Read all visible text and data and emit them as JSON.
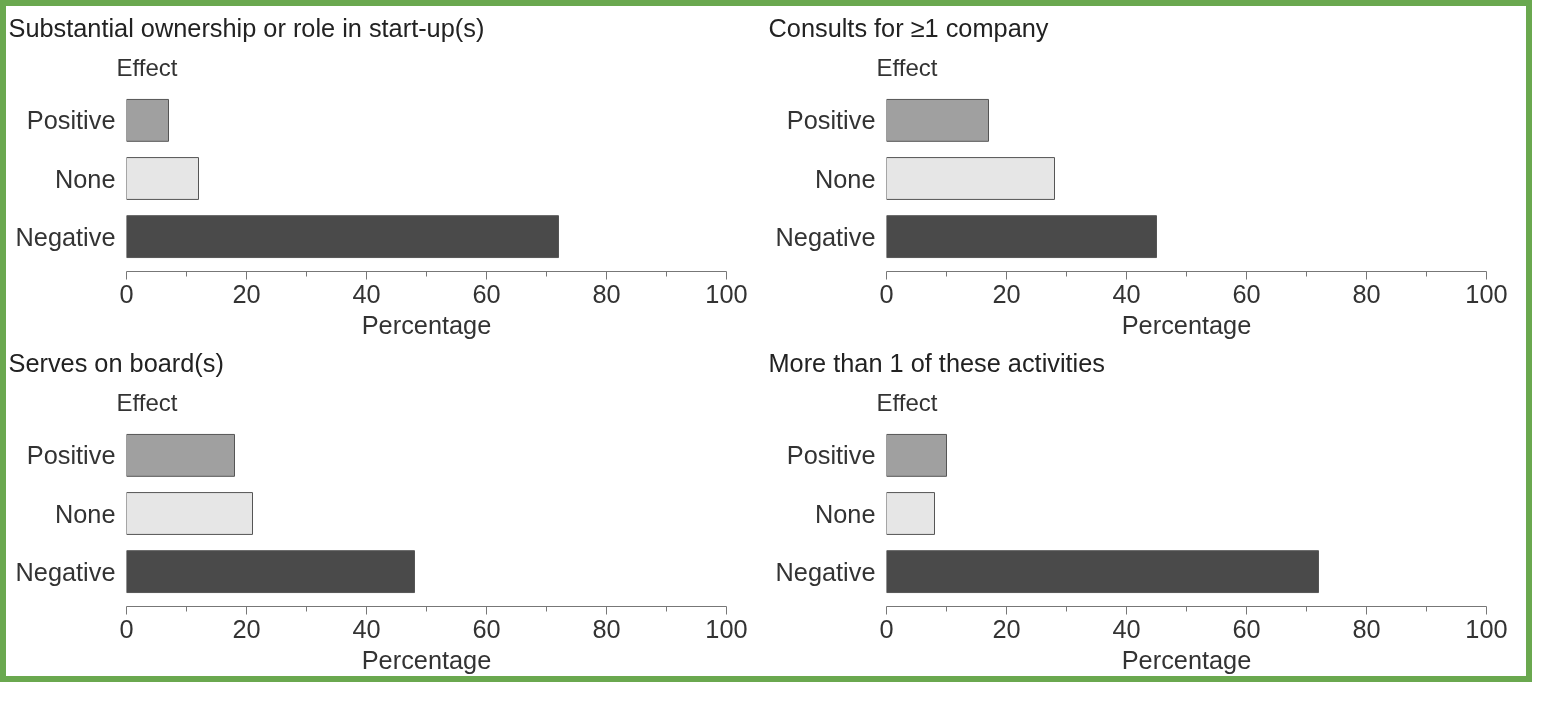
{
  "chart_data": [
    {
      "type": "bar",
      "orientation": "horizontal",
      "title": "Substantial ownership or role in start-up(s)",
      "ylabel": "Effect",
      "xlabel": "Percentage",
      "categories": [
        "Positive",
        "None",
        "Negative"
      ],
      "values": [
        7,
        12,
        72
      ],
      "colors": [
        "#a0a0a0",
        "#e6e6e6",
        "#4a4a4a"
      ],
      "xlim": [
        0,
        100
      ],
      "xticks": [
        0,
        20,
        40,
        60,
        80,
        100
      ],
      "grid": false
    },
    {
      "type": "bar",
      "orientation": "horizontal",
      "title": "Consults for ≥1 company",
      "ylabel": "Effect",
      "xlabel": "Percentage",
      "categories": [
        "Positive",
        "None",
        "Negative"
      ],
      "values": [
        17,
        28,
        45
      ],
      "colors": [
        "#a0a0a0",
        "#e6e6e6",
        "#4a4a4a"
      ],
      "xlim": [
        0,
        100
      ],
      "xticks": [
        0,
        20,
        40,
        60,
        80,
        100
      ],
      "grid": false
    },
    {
      "type": "bar",
      "orientation": "horizontal",
      "title": "Serves on board(s)",
      "ylabel": "Effect",
      "xlabel": "Percentage",
      "categories": [
        "Positive",
        "None",
        "Negative"
      ],
      "values": [
        18,
        21,
        48
      ],
      "colors": [
        "#a0a0a0",
        "#e6e6e6",
        "#4a4a4a"
      ],
      "xlim": [
        0,
        100
      ],
      "xticks": [
        0,
        20,
        40,
        60,
        80,
        100
      ],
      "grid": false
    },
    {
      "type": "bar",
      "orientation": "horizontal",
      "title": "More than 1 of these activities",
      "ylabel": "Effect",
      "xlabel": "Percentage",
      "categories": [
        "Positive",
        "None",
        "Negative"
      ],
      "values": [
        10,
        8,
        72
      ],
      "colors": [
        "#a0a0a0",
        "#e6e6e6",
        "#4a4a4a"
      ],
      "xlim": [
        0,
        100
      ],
      "xticks": [
        0,
        20,
        40,
        60,
        80,
        100
      ],
      "grid": false
    }
  ]
}
